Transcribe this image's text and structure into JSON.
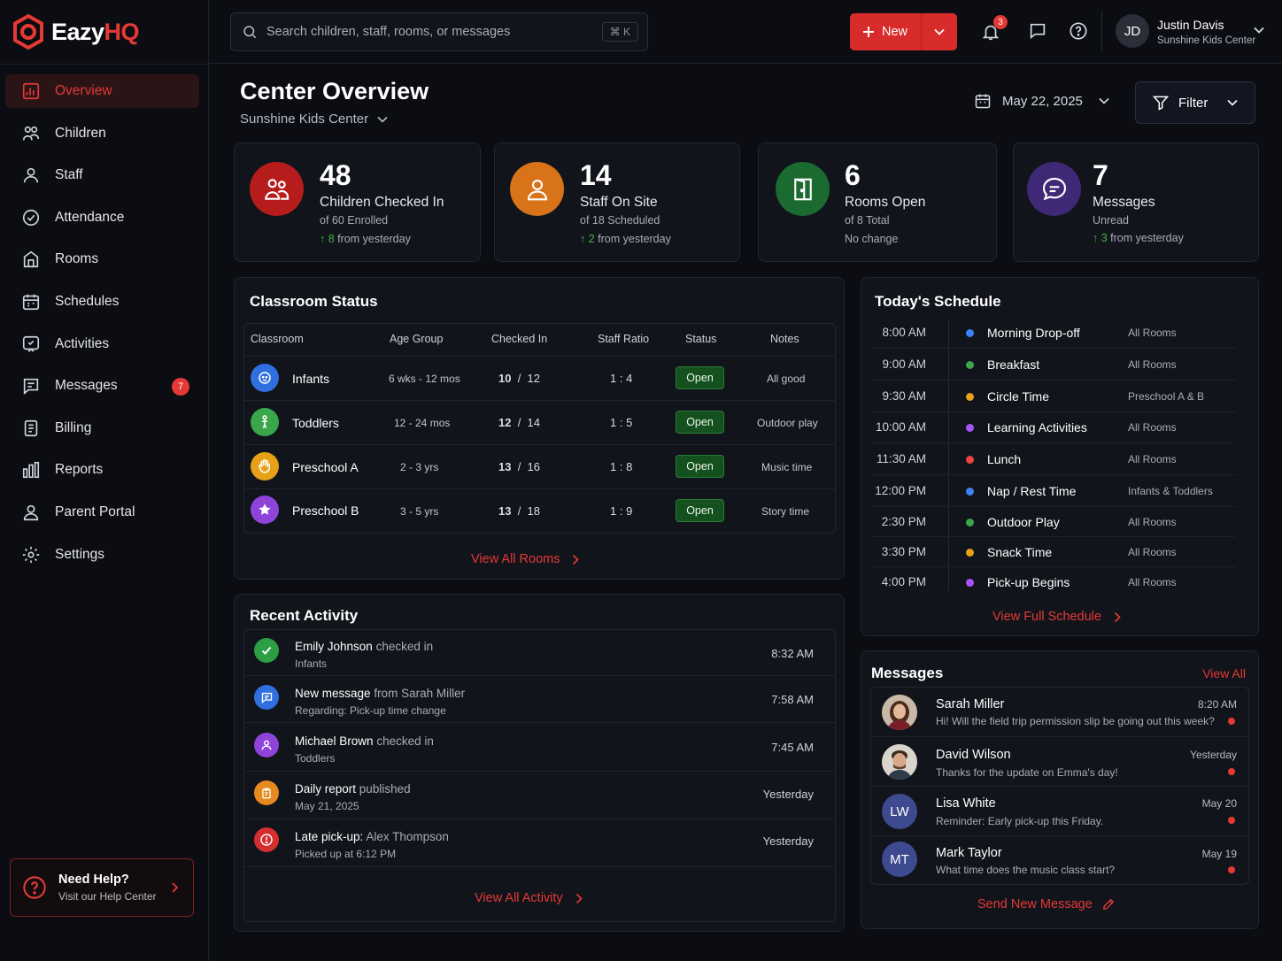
{
  "app": {
    "logo_main": "Eazy",
    "logo_accent": "HQ"
  },
  "sidebar": {
    "items": [
      {
        "label": "Overview",
        "icon": "overview-icon"
      },
      {
        "label": "Children",
        "icon": "children-icon"
      },
      {
        "label": "Staff",
        "icon": "staff-icon"
      },
      {
        "label": "Attendance",
        "icon": "attendance-icon"
      },
      {
        "label": "Rooms",
        "icon": "rooms-icon"
      },
      {
        "label": "Schedules",
        "icon": "calendar-icon"
      },
      {
        "label": "Activities",
        "icon": "activities-icon"
      },
      {
        "label": "Messages",
        "icon": "messages-icon",
        "badge": "7"
      },
      {
        "label": "Billing",
        "icon": "billing-icon"
      },
      {
        "label": "Reports",
        "icon": "reports-icon"
      },
      {
        "label": "Parent Portal",
        "icon": "parent-portal-icon"
      },
      {
        "label": "Settings",
        "icon": "gear-icon"
      }
    ],
    "help": {
      "title": "Need Help?",
      "subtitle": "Visit our Help Center"
    }
  },
  "topbar": {
    "search_placeholder": "Search children, staff, rooms, or messages",
    "search_shortcut": "⌘ K",
    "new_label": "New",
    "notifications_count": "3",
    "user": {
      "initials": "JD",
      "name": "Justin Davis",
      "center": "Sunshine Kids Center"
    }
  },
  "header": {
    "title": "Center Overview",
    "center": "Sunshine Kids Center",
    "date": "May 22, 2025",
    "filter_label": "Filter"
  },
  "stats": [
    {
      "value": "48",
      "label": "Children Checked In",
      "sub": "of 60 Enrolled",
      "trend_value": "8",
      "trend_text": "from yesterday",
      "color": "#c62828"
    },
    {
      "value": "14",
      "label": "Staff On Site",
      "sub": "of 18 Scheduled",
      "trend_value": "2",
      "trend_text": "from yesterday",
      "color": "#e07a1f"
    },
    {
      "value": "6",
      "label": "Rooms Open",
      "sub": "of 8 Total",
      "trend_text": "No change",
      "color": "#1f7a35"
    },
    {
      "value": "7",
      "label": "Messages",
      "sub": "Unread",
      "trend_value": "3",
      "trend_text": "from yesterday",
      "color": "#4a2f86"
    }
  ],
  "classroom": {
    "title": "Classroom Status",
    "columns": [
      "Classroom",
      "Age Group",
      "Checked In",
      "Staff Ratio",
      "Status",
      "Notes"
    ],
    "rows": [
      {
        "name": "Infants",
        "age": "6 wks - 12 mos",
        "checked": "10",
        "total": "12",
        "ratio": "1 : 4",
        "status": "Open",
        "notes": "All good",
        "color": "#2f6fe0"
      },
      {
        "name": "Toddlers",
        "age": "12 - 24 mos",
        "checked": "12",
        "total": "14",
        "ratio": "1 : 5",
        "status": "Open",
        "notes": "Outdoor play",
        "color": "#3aa84a"
      },
      {
        "name": "Preschool A",
        "age": "2 - 3 yrs",
        "checked": "13",
        "total": "16",
        "ratio": "1 : 8",
        "status": "Open",
        "notes": "Music time",
        "color": "#e6a119"
      },
      {
        "name": "Preschool B",
        "age": "3 - 5 yrs",
        "checked": "13",
        "total": "18",
        "ratio": "1 : 9",
        "status": "Open",
        "notes": "Story time",
        "color": "#8e44d9"
      }
    ],
    "link": "View All Rooms"
  },
  "activity": {
    "title": "Recent Activity",
    "items": [
      {
        "bold": "Emily Johnson",
        "rest": "checked in",
        "sub": "Infants",
        "time": "8:32 AM",
        "color": "#2e9e44",
        "icon": "check-icon"
      },
      {
        "bold": "New message",
        "rest": "from Sarah Miller",
        "sub": "Regarding: Pick-up time change",
        "time": "7:58 AM",
        "color": "#2f6fe0",
        "icon": "message-icon"
      },
      {
        "bold": "Michael Brown",
        "rest": "checked in",
        "sub": "Toddlers",
        "time": "7:45 AM",
        "color": "#8e44d9",
        "icon": "user-icon"
      },
      {
        "bold": "Daily report",
        "rest": "published",
        "sub": "May 21, 2025",
        "time": "Yesterday",
        "color": "#e6891f",
        "icon": "clipboard-icon"
      },
      {
        "bold": "Late pick-up:",
        "rest": "Alex Thompson",
        "sub": "Picked up at 6:12 PM",
        "time": "Yesterday",
        "color": "#d32f2f",
        "icon": "alert-icon"
      }
    ],
    "link": "View All Activity"
  },
  "schedule": {
    "title": "Today's Schedule",
    "items": [
      {
        "time": "8:00 AM",
        "event": "Morning Drop-off",
        "room": "All Rooms",
        "color": "#3b82f6"
      },
      {
        "time": "9:00 AM",
        "event": "Breakfast",
        "room": "All Rooms",
        "color": "#3aa84a"
      },
      {
        "time": "9:30 AM",
        "event": "Circle Time",
        "room": "Preschool A & B",
        "color": "#e6a119"
      },
      {
        "time": "10:00 AM",
        "event": "Learning Activities",
        "room": "All Rooms",
        "color": "#a855f7"
      },
      {
        "time": "11:30 AM",
        "event": "Lunch",
        "room": "All Rooms",
        "color": "#ef4444"
      },
      {
        "time": "12:00 PM",
        "event": "Nap / Rest Time",
        "room": "Infants & Toddlers",
        "color": "#3b82f6"
      },
      {
        "time": "2:30 PM",
        "event": "Outdoor Play",
        "room": "All Rooms",
        "color": "#3aa84a"
      },
      {
        "time": "3:30 PM",
        "event": "Snack Time",
        "room": "All Rooms",
        "color": "#e6a119"
      },
      {
        "time": "4:00 PM",
        "event": "Pick-up Begins",
        "room": "All Rooms",
        "color": "#a855f7"
      }
    ],
    "link": "View Full Schedule"
  },
  "messages": {
    "title": "Messages",
    "view_all": "View All",
    "items": [
      {
        "name": "Sarah Miller",
        "text": "Hi! Will the field trip permission slip be going out this week?",
        "time": "8:20 AM",
        "initials": "",
        "avatar_color": "#8a5a44"
      },
      {
        "name": "David Wilson",
        "text": "Thanks for the update on Emma's day!",
        "time": "Yesterday",
        "initials": "",
        "avatar_color": "#6b5a4e"
      },
      {
        "name": "Lisa White",
        "text": "Reminder: Early pick-up this Friday.",
        "time": "May 20",
        "initials": "LW",
        "avatar_color": "#3d4a8f"
      },
      {
        "name": "Mark Taylor",
        "text": "What time does the music class start?",
        "time": "May 19",
        "initials": "MT",
        "avatar_color": "#3d4a8f"
      }
    ],
    "link": "Send New Message"
  }
}
